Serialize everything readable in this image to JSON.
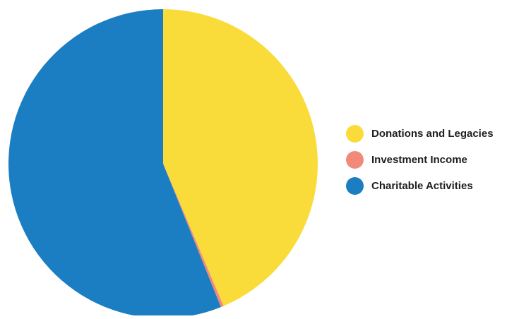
{
  "chart_data": {
    "type": "pie",
    "title": "",
    "slices": [
      {
        "label": "Donations and Legacies",
        "value": 43.6,
        "color": "#f9dc3a"
      },
      {
        "label": "Investment Income",
        "value": 0.3,
        "color": "#f28a7b"
      },
      {
        "label": "Charitable Activities",
        "value": 56.1,
        "color": "#1c7ec2"
      }
    ],
    "start_angle_deg": 0,
    "direction": "clockwise",
    "legend_placement": "right"
  }
}
